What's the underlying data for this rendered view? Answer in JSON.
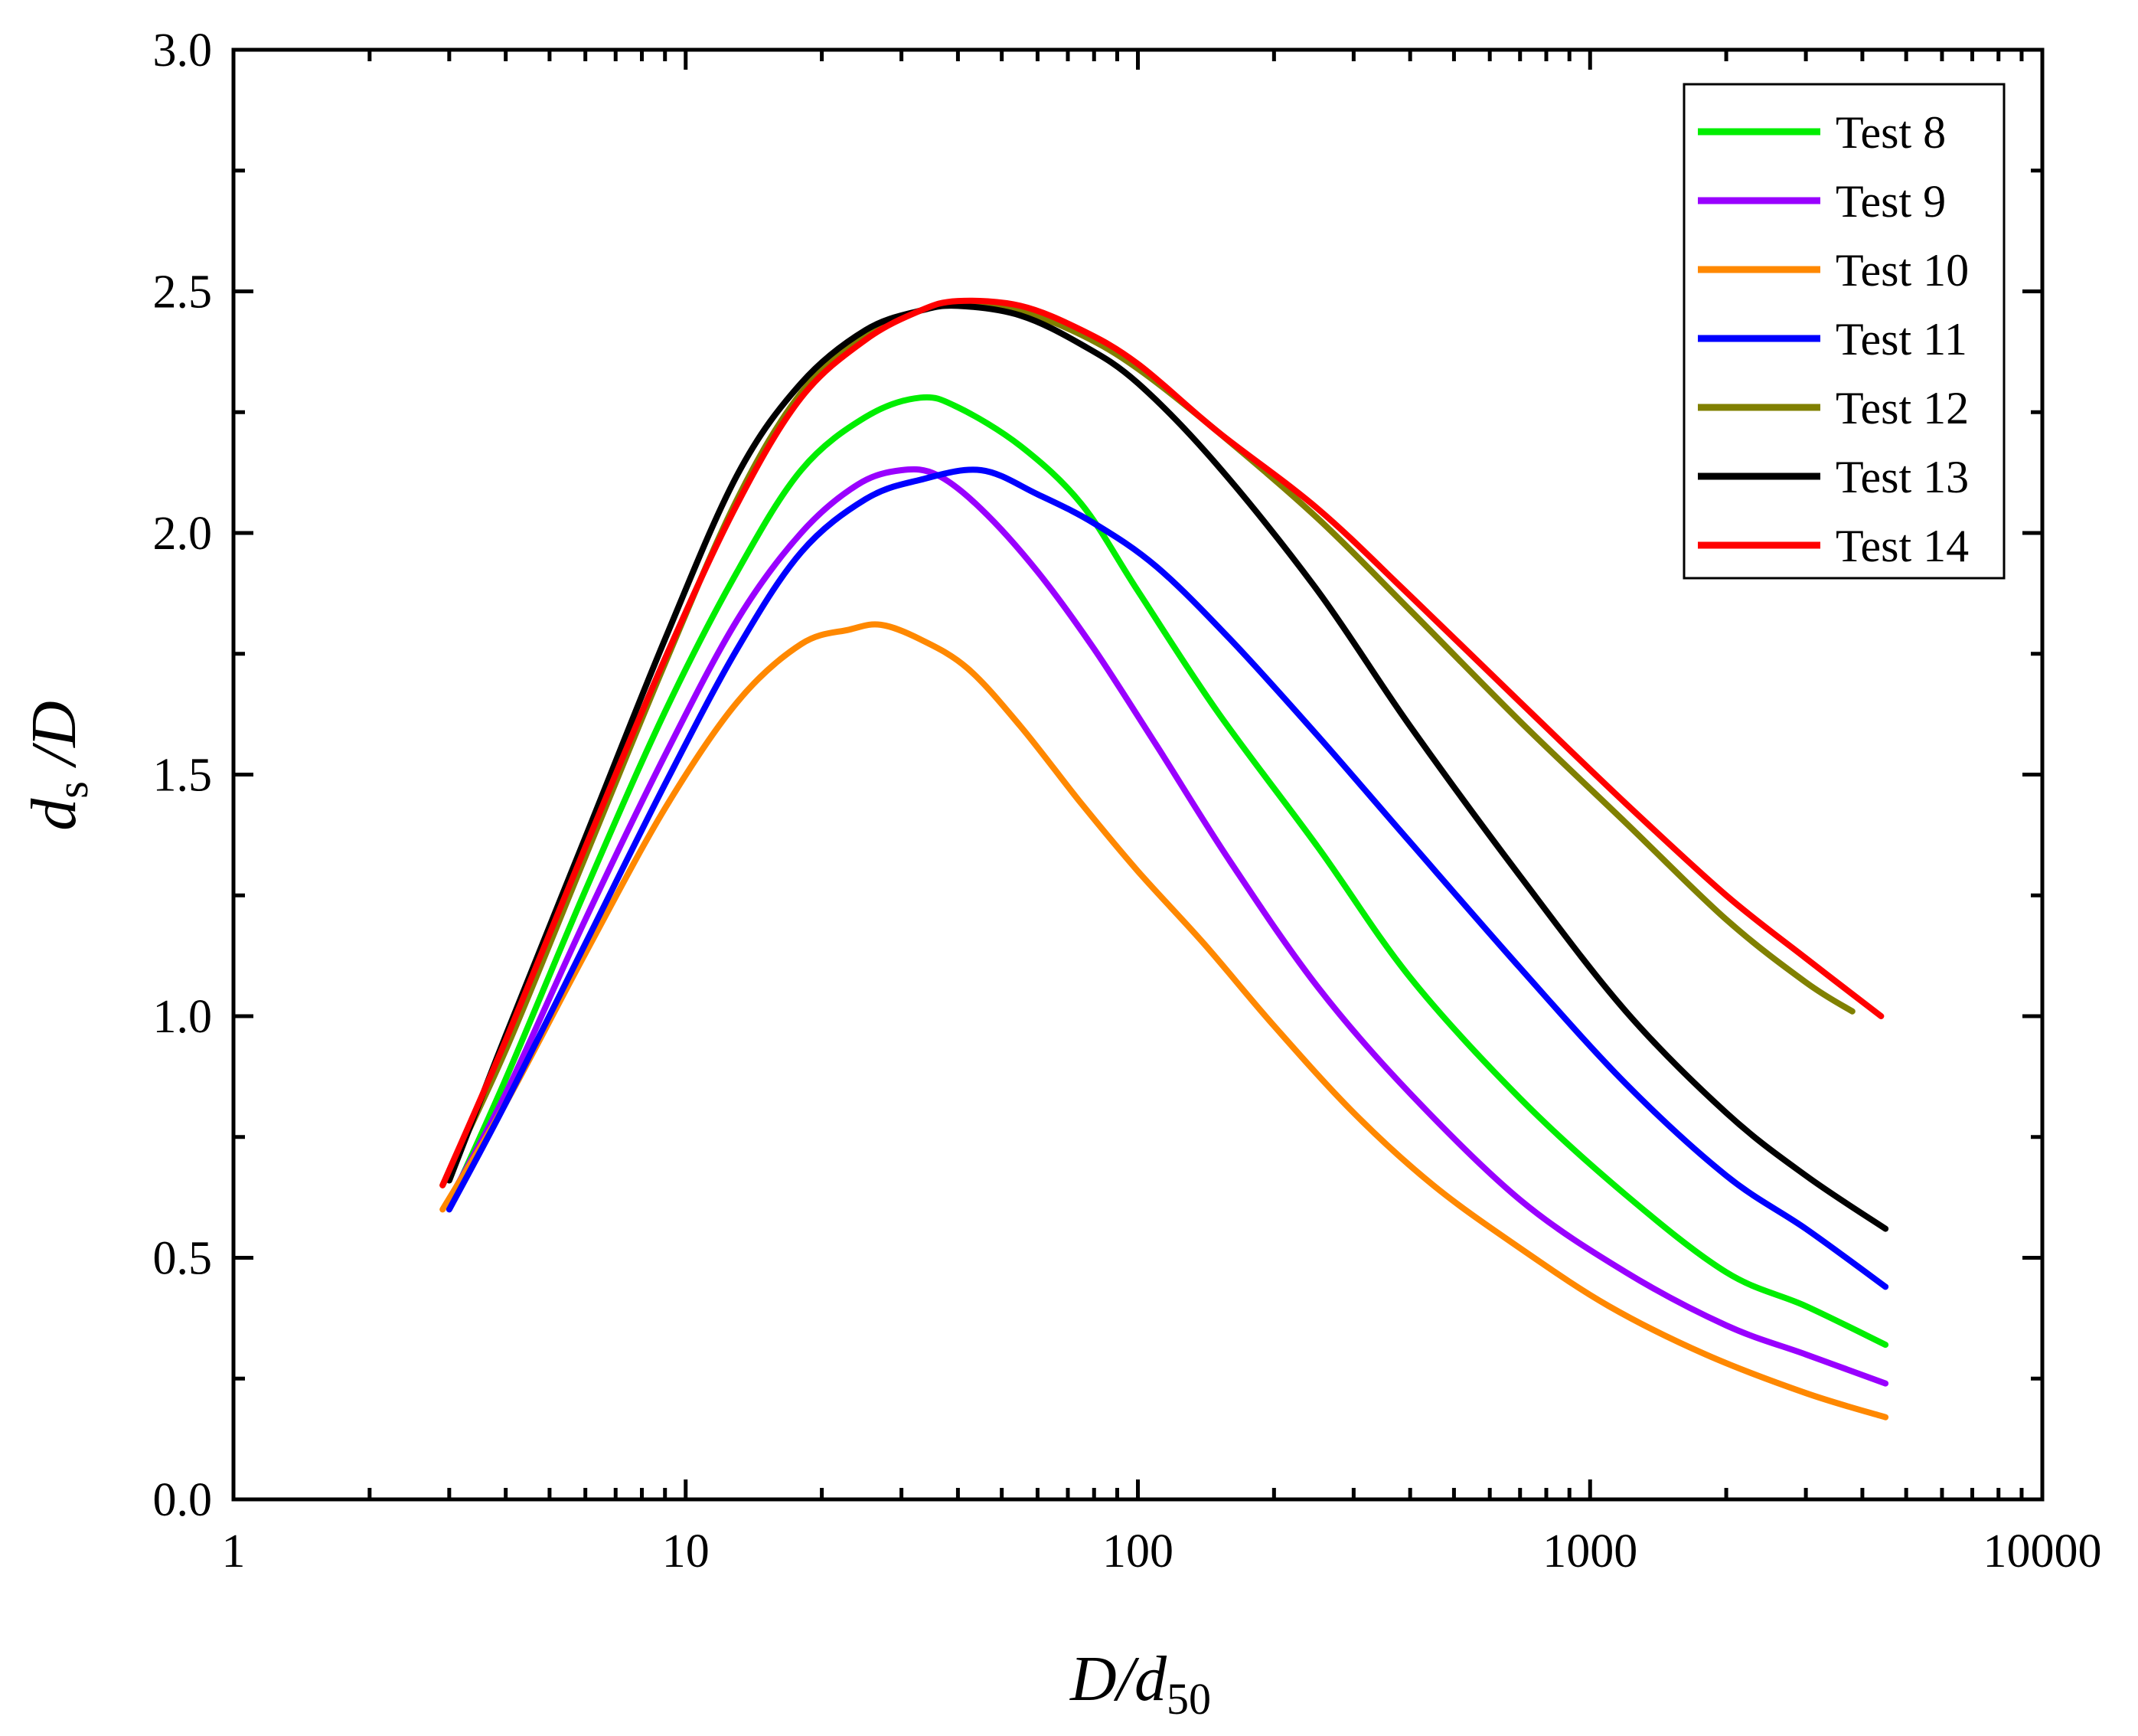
{
  "chart_data": {
    "type": "line",
    "title": "",
    "xscale": "log",
    "xlim": [
      1,
      10000
    ],
    "ylim": [
      0,
      3.0
    ],
    "xticks": [
      "1",
      "10",
      "100",
      "1000",
      "10000"
    ],
    "yticks": [
      "0.0",
      "0.5",
      "1.0",
      "1.5",
      "2.0",
      "2.5",
      "3.0"
    ],
    "xlabel": {
      "main": "D/d",
      "sub": "50"
    },
    "ylabel": {
      "pre": "d",
      "sub": "s",
      "post": " /D"
    },
    "legend_position": "top-right",
    "grid": false,
    "series": [
      {
        "name": "Test 8",
        "color": "#00ee00",
        "x": [
          3.0,
          4.0,
          6.0,
          9.0,
          13.0,
          18.0,
          25.0,
          33.0,
          40.0,
          55.0,
          75.0,
          100.0,
          150.0,
          250.0,
          400.0,
          700.0,
          1200.0,
          2000.0,
          3000.0,
          4500.0
        ],
        "y": [
          0.61,
          0.87,
          1.26,
          1.63,
          1.92,
          2.13,
          2.24,
          2.28,
          2.26,
          2.18,
          2.06,
          1.88,
          1.63,
          1.35,
          1.08,
          0.83,
          0.63,
          0.47,
          0.4,
          0.32
        ]
      },
      {
        "name": "Test 9",
        "color": "#9900ff",
        "x": [
          3.0,
          4.0,
          6.0,
          9.0,
          13.0,
          18.0,
          24.0,
          30.0,
          36.0,
          45.0,
          60.0,
          80.0,
          110.0,
          160.0,
          250.0,
          400.0,
          700.0,
          1200.0,
          2000.0,
          3000.0,
          4500.0
        ],
        "y": [
          0.62,
          0.84,
          1.2,
          1.54,
          1.82,
          2.0,
          2.1,
          2.13,
          2.12,
          2.05,
          1.92,
          1.76,
          1.56,
          1.32,
          1.06,
          0.84,
          0.62,
          0.47,
          0.36,
          0.3,
          0.24
        ]
      },
      {
        "name": "Test 10",
        "color": "#ff8800",
        "x": [
          2.9,
          4.0,
          6.0,
          9.0,
          13.0,
          18.0,
          23.0,
          27.0,
          33.0,
          42.0,
          55.0,
          75.0,
          100.0,
          140.0,
          200.0,
          300.0,
          450.0,
          700.0,
          1100.0,
          1800.0,
          3000.0,
          4500.0
        ],
        "y": [
          0.6,
          0.82,
          1.13,
          1.43,
          1.65,
          1.77,
          1.8,
          1.81,
          1.78,
          1.72,
          1.6,
          1.44,
          1.3,
          1.15,
          0.98,
          0.8,
          0.65,
          0.52,
          0.4,
          0.3,
          0.22,
          0.17
        ]
      },
      {
        "name": "Test 11",
        "color": "#0000ff",
        "x": [
          3.0,
          4.0,
          6.0,
          9.0,
          13.0,
          18.0,
          25.0,
          33.0,
          45.0,
          60.0,
          80.0,
          110.0,
          160.0,
          250.0,
          400.0,
          700.0,
          1200.0,
          2000.0,
          3000.0,
          4500.0
        ],
        "y": [
          0.6,
          0.82,
          1.15,
          1.48,
          1.76,
          1.96,
          2.07,
          2.11,
          2.13,
          2.08,
          2.02,
          1.93,
          1.78,
          1.58,
          1.36,
          1.1,
          0.86,
          0.67,
          0.56,
          0.44
        ]
      },
      {
        "name": "Test 12",
        "color": "#808000",
        "x": [
          2.9,
          4.0,
          6.0,
          9.0,
          13.0,
          18.0,
          25.0,
          33.0,
          42.0,
          55.0,
          75.0,
          100.0,
          150.0,
          250.0,
          400.0,
          700.0,
          1200.0,
          2000.0,
          3000.0,
          3800.0
        ],
        "y": [
          0.65,
          0.93,
          1.33,
          1.73,
          2.07,
          2.29,
          2.41,
          2.46,
          2.48,
          2.46,
          2.41,
          2.34,
          2.21,
          2.03,
          1.84,
          1.61,
          1.4,
          1.2,
          1.07,
          1.01
        ]
      },
      {
        "name": "Test 13",
        "color": "#000000",
        "x": [
          3.0,
          4.0,
          6.0,
          9.0,
          13.0,
          18.0,
          25.0,
          33.0,
          40.0,
          55.0,
          75.0,
          100.0,
          150.0,
          250.0,
          400.0,
          700.0,
          1200.0,
          2000.0,
          3000.0,
          4500.0
        ],
        "y": [
          0.66,
          0.96,
          1.37,
          1.78,
          2.12,
          2.31,
          2.42,
          2.46,
          2.47,
          2.45,
          2.39,
          2.31,
          2.14,
          1.88,
          1.6,
          1.29,
          1.01,
          0.8,
          0.67,
          0.56
        ]
      },
      {
        "name": "Test 14",
        "color": "#ff0000",
        "x": [
          2.9,
          4.0,
          6.0,
          9.0,
          13.0,
          18.0,
          25.0,
          33.0,
          40.0,
          55.0,
          75.0,
          100.0,
          150.0,
          250.0,
          400.0,
          700.0,
          1200.0,
          2000.0,
          3000.0,
          4400.0
        ],
        "y": [
          0.65,
          0.95,
          1.35,
          1.74,
          2.06,
          2.28,
          2.4,
          2.46,
          2.48,
          2.47,
          2.42,
          2.35,
          2.21,
          2.05,
          1.87,
          1.65,
          1.44,
          1.25,
          1.12,
          1.0
        ]
      }
    ]
  }
}
